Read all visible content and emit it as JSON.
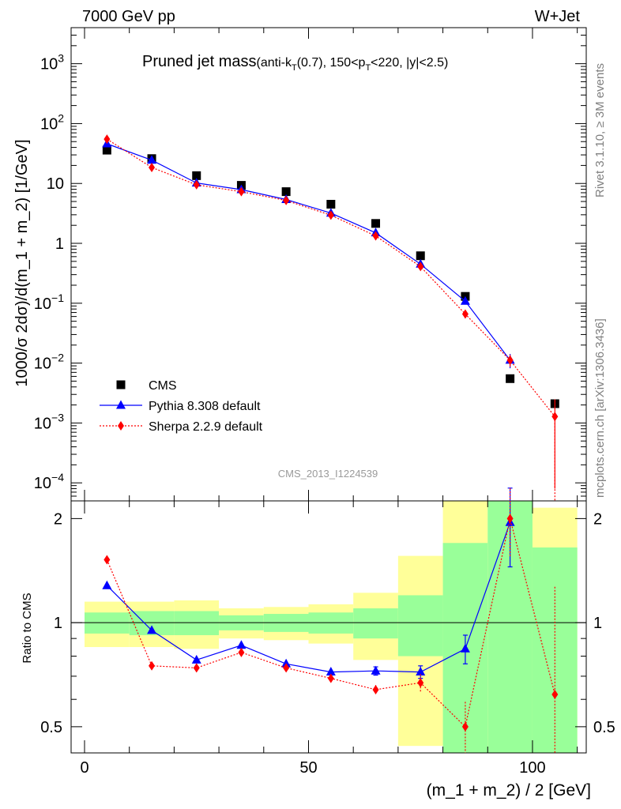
{
  "header": {
    "left": "7000 GeV pp",
    "right": "W+Jet"
  },
  "plot_title": {
    "main": "Pruned jet mass",
    "cuts_prefix": "(anti-k",
    "cuts_sub1": "T",
    "cuts_mid1": "(0.7), 150<p",
    "cuts_sub2": "T",
    "cuts_suffix": "<220, |y|<2.5)"
  },
  "side_text": {
    "top": "Rivet 3.1.10, ≥ 3M events",
    "bottom": "mcplots.cern.ch [arXiv:1306.3436]"
  },
  "watermark": "CMS_2013_I1224539",
  "legend": [
    {
      "label": "CMS",
      "color": "#000000",
      "marker": "square"
    },
    {
      "label": "Pythia 8.308 default",
      "color": "#0000ff",
      "marker": "triangle"
    },
    {
      "label": "Sherpa 2.2.9 default",
      "color": "#ff0000",
      "marker": "diamond"
    }
  ],
  "chart_data": [
    {
      "type": "line",
      "panel": "main",
      "ylabel": "1000/σ 2dσ)/d(m_1 + m_2) [1/GeV]",
      "yscale": "log",
      "xlim": [
        -3,
        112
      ],
      "ylim": [
        5e-05,
        4000
      ],
      "y_ticks": [
        {
          "value": 1000,
          "base": "10",
          "exp": "3"
        },
        {
          "value": 100,
          "base": "10",
          "exp": "2"
        },
        {
          "value": 10,
          "base": "10",
          "exp": ""
        },
        {
          "value": 1,
          "base": "1",
          "exp": ""
        },
        {
          "value": 0.1,
          "base": "10",
          "exp": "−1"
        },
        {
          "value": 0.01,
          "base": "10",
          "exp": "−2"
        },
        {
          "value": 0.001,
          "base": "10",
          "exp": "−3"
        },
        {
          "value": 0.0001,
          "base": "10",
          "exp": "−4"
        }
      ],
      "series": [
        {
          "name": "CMS",
          "color": "#000000",
          "marker": "square",
          "x": [
            5,
            15,
            25,
            35,
            45,
            55,
            65,
            75,
            85,
            95,
            105
          ],
          "y": [
            36,
            26,
            13.5,
            9.3,
            7.3,
            4.5,
            2.15,
            0.62,
            0.13,
            0.0055,
            0.0021
          ]
        },
        {
          "name": "Pythia 8.308 default",
          "color": "#0000ff",
          "marker": "triangle",
          "x": [
            5,
            15,
            25,
            35,
            45,
            55,
            65,
            75,
            85,
            95
          ],
          "y": [
            46,
            24.5,
            10.2,
            7.9,
            5.4,
            3.2,
            1.5,
            0.45,
            0.108,
            0.0112
          ],
          "yerr": [
            0,
            0,
            0,
            0,
            0,
            0,
            0,
            0,
            0,
            0.003
          ]
        },
        {
          "name": "Sherpa 2.2.9 default",
          "color": "#ff0000",
          "marker": "diamond",
          "x": [
            5,
            15,
            25,
            35,
            45,
            55,
            65,
            75,
            85,
            95,
            105
          ],
          "y": [
            55,
            18.5,
            9.5,
            7.3,
            5.2,
            2.95,
            1.33,
            0.41,
            0.066,
            0.0112,
            0.00128
          ],
          "yerr": [
            0,
            0,
            0,
            0,
            0,
            0,
            0,
            0,
            0,
            0.0025,
            0.0012
          ]
        }
      ]
    },
    {
      "type": "line",
      "panel": "ratio",
      "ylabel": "Ratio to CMS",
      "xlabel": "(m_1 + m_2) / 2 [GeV]",
      "xlim": [
        -3,
        112
      ],
      "ylim": [
        0.42,
        2.25
      ],
      "x_ticks": [
        0,
        50,
        100
      ],
      "y_ticks": [
        0.5,
        1,
        2
      ],
      "band_bins": [
        {
          "x0": 0,
          "x1": 10,
          "inner": [
            0.93,
            1.07
          ],
          "outer": [
            0.85,
            1.15
          ]
        },
        {
          "x0": 10,
          "x1": 20,
          "inner": [
            0.92,
            1.08
          ],
          "outer": [
            0.85,
            1.15
          ]
        },
        {
          "x0": 20,
          "x1": 30,
          "inner": [
            0.92,
            1.08
          ],
          "outer": [
            0.84,
            1.16
          ]
        },
        {
          "x0": 30,
          "x1": 40,
          "inner": [
            0.95,
            1.05
          ],
          "outer": [
            0.9,
            1.1
          ]
        },
        {
          "x0": 40,
          "x1": 50,
          "inner": [
            0.94,
            1.06
          ],
          "outer": [
            0.89,
            1.11
          ]
        },
        {
          "x0": 50,
          "x1": 60,
          "inner": [
            0.93,
            1.07
          ],
          "outer": [
            0.87,
            1.13
          ]
        },
        {
          "x0": 60,
          "x1": 70,
          "inner": [
            0.9,
            1.1
          ],
          "outer": [
            0.78,
            1.22
          ]
        },
        {
          "x0": 70,
          "x1": 80,
          "inner": [
            0.8,
            1.2
          ],
          "outer": [
            0.44,
            1.56
          ]
        },
        {
          "x0": 80,
          "x1": 90,
          "inner": [
            0.42,
            1.7
          ],
          "outer": [
            0.42,
            2.25
          ]
        },
        {
          "x0": 90,
          "x1": 100,
          "inner": [
            0.42,
            2.25
          ],
          "outer": [
            0.42,
            2.25
          ]
        },
        {
          "x0": 100,
          "x1": 110,
          "inner": [
            0.42,
            1.65
          ],
          "outer": [
            0.42,
            2.15
          ]
        }
      ],
      "series": [
        {
          "name": "Pythia 8.308 default",
          "color": "#0000ff",
          "marker": "triangle",
          "x": [
            5,
            15,
            25,
            35,
            45,
            55,
            65,
            75,
            85,
            95
          ],
          "y": [
            1.28,
            0.95,
            0.78,
            0.86,
            0.76,
            0.72,
            0.725,
            0.72,
            0.84,
            1.95
          ],
          "yerr": [
            0,
            0,
            0,
            0,
            0,
            0,
            0.02,
            0.03,
            0.08,
            0.5
          ]
        },
        {
          "name": "Sherpa 2.2.9 default",
          "color": "#ff0000",
          "marker": "diamond",
          "x": [
            5,
            15,
            25,
            35,
            45,
            55,
            65,
            75,
            85,
            95,
            105
          ],
          "y": [
            1.52,
            0.75,
            0.74,
            0.82,
            0.74,
            0.69,
            0.64,
            0.67,
            0.5,
            2.0,
            0.62
          ],
          "yerr": [
            0,
            0,
            0,
            0,
            0,
            0,
            0.02,
            0.04,
            0.09,
            0.45,
            0.65
          ]
        }
      ]
    }
  ]
}
